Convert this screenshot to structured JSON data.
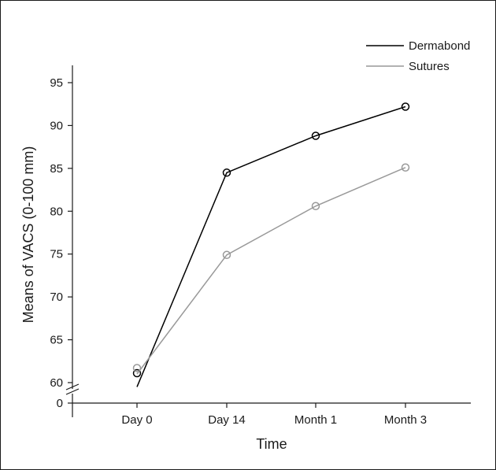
{
  "chart_data": {
    "type": "line",
    "title": "",
    "xlabel": "Time",
    "ylabel": "Means of VACS (0-100 mm)",
    "categories": [
      "Day 0",
      "Day 14",
      "Month 1",
      "Month 3"
    ],
    "y_ticks": [
      "0",
      "60",
      "65",
      "70",
      "75",
      "80",
      "85",
      "90",
      "95"
    ],
    "ylim": [
      60,
      95
    ],
    "y_axis_break": true,
    "grid": false,
    "legend_position": "top-right",
    "series": [
      {
        "name": "Dermabond",
        "color": "#000000",
        "line_start": 59.5,
        "values": [
          61.1,
          84.5,
          88.8,
          92.2
        ]
      },
      {
        "name": "Sutures",
        "color": "#999999",
        "line_start": 61.0,
        "values": [
          61.7,
          74.9,
          80.6,
          85.1
        ]
      }
    ]
  }
}
